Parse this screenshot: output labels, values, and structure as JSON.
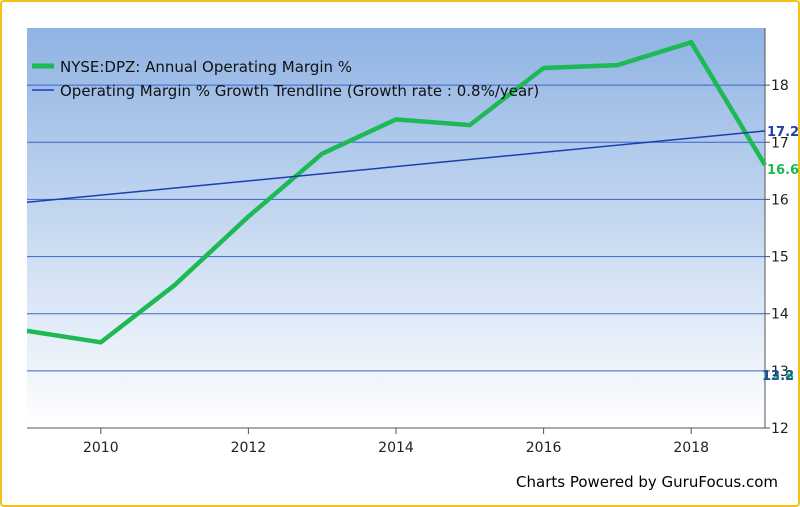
{
  "chart_data": {
    "type": "line",
    "xlim": [
      2009,
      2019
    ],
    "ylim": [
      12,
      19
    ],
    "x_ticks": [
      2010,
      2012,
      2014,
      2016,
      2018
    ],
    "y_ticks": [
      12,
      13,
      14,
      15,
      16,
      17,
      18
    ],
    "grid": true,
    "legend_position": "top-left",
    "series": [
      {
        "name": "NYSE:DPZ: Annual Operating Margin %",
        "color": "#1db954",
        "x": [
          2009,
          2010,
          2011,
          2012,
          2013,
          2014,
          2015,
          2016,
          2017,
          2018,
          2019
        ],
        "y": [
          13.7,
          13.5,
          14.5,
          15.7,
          16.8,
          17.4,
          17.3,
          18.3,
          18.35,
          18.75,
          16.6
        ],
        "end_label": "16.6"
      },
      {
        "name": "Operating Margin % Growth Trendline (Growth rate : 0.8%/year)",
        "color": "#1c3fb0",
        "x": [
          2009,
          2019
        ],
        "y": [
          15.95,
          17.2
        ],
        "end_label": "17.2"
      }
    ],
    "overlap_labels": [
      "12.8",
      "13.2"
    ]
  },
  "credit": "Charts Powered by GuruFocus.com"
}
